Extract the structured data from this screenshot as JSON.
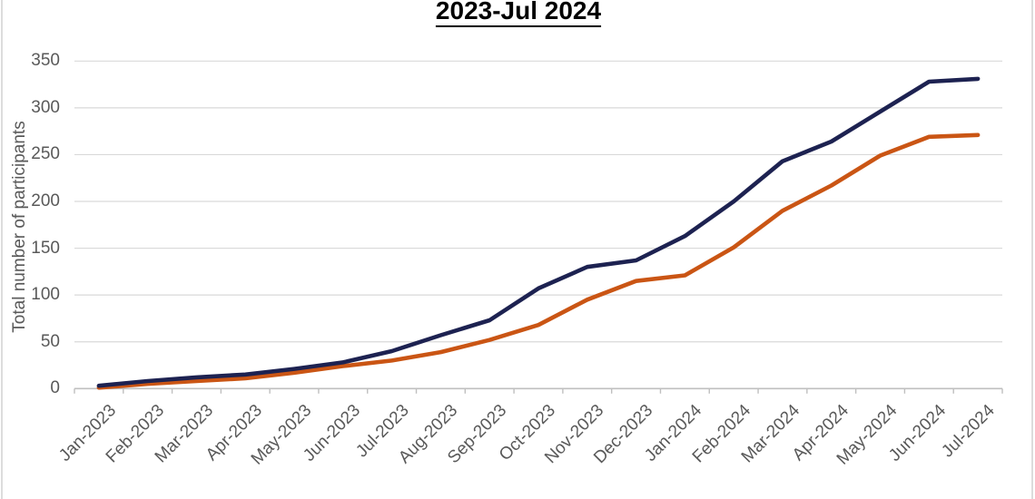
{
  "chart_data": {
    "type": "line",
    "title": "2023-Jul 2024",
    "xlabel": "",
    "ylabel": "Total number of participants",
    "categories": [
      "Jan-2023",
      "Feb-2023",
      "Mar-2023",
      "Apr-2023",
      "May-2023",
      "Jun-2023",
      "Jul-2023",
      "Aug-2023",
      "Sep-2023",
      "Oct-2023",
      "Nov-2023",
      "Dec-2023",
      "Jan-2024",
      "Feb-2024",
      "Mar-2024",
      "Apr-2024",
      "May-2024",
      "Jun-2024",
      "Jul-2024"
    ],
    "y_ticks": [
      0,
      50,
      100,
      150,
      200,
      250,
      300,
      350
    ],
    "ylim": [
      0,
      350
    ],
    "grid": true,
    "legend_position": "none",
    "series": [
      {
        "name": "orange-line",
        "color": "#ca5514",
        "values": [
          1,
          5,
          8,
          11,
          17,
          24,
          30,
          39,
          52,
          68,
          95,
          115,
          121,
          151,
          190,
          217,
          249,
          269,
          271
        ]
      },
      {
        "name": "navy-line",
        "color": "#1d2251",
        "values": [
          3,
          8,
          12,
          15,
          21,
          28,
          40,
          57,
          73,
          107,
          130,
          137,
          163,
          200,
          243,
          264,
          296,
          328,
          331
        ]
      }
    ],
    "colors": {
      "gridline": "#d9d9d9",
      "axis_line": "#bfbfbf",
      "tick_label": "#595959",
      "title_text": "#000000"
    }
  }
}
